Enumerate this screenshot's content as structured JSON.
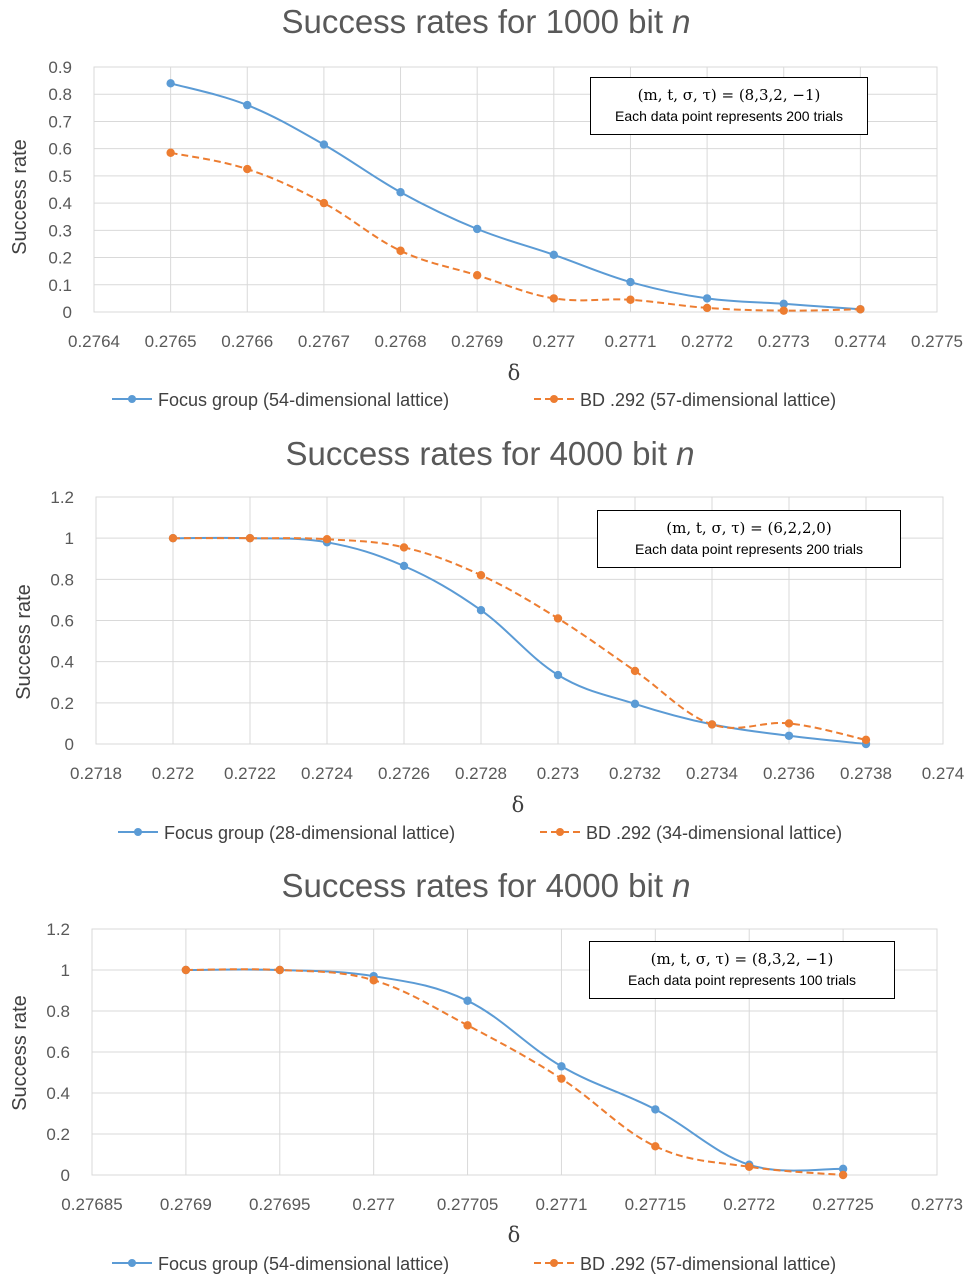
{
  "chart_data": [
    {
      "type": "line",
      "title_prefix": "Success rates for 1000 bit",
      "title_var": "n",
      "xlabel": "δ",
      "ylabel": "Success rate",
      "xlim": [
        0.2764,
        0.2775
      ],
      "ylim": [
        0,
        0.9
      ],
      "x_ticks": [
        "0.2764",
        "0.2765",
        "0.2766",
        "0.2767",
        "0.2768",
        "0.2769",
        "0.277",
        "0.2771",
        "0.2772",
        "0.2773",
        "0.2774",
        "0.2775"
      ],
      "y_ticks": [
        "0",
        "0.1",
        "0.2",
        "0.3",
        "0.4",
        "0.5",
        "0.6",
        "0.7",
        "0.8",
        "0.9"
      ],
      "grid": true,
      "legend_position": "bottom",
      "annotation": {
        "params": "(m, t, σ, τ) = (8,3,2, −1)",
        "note": "Each data point represents 200 trials"
      },
      "series": [
        {
          "name": "Focus group (54-dimensional lattice)",
          "color": "#5B9BD5",
          "style": "solid",
          "x": [
            0.2765,
            0.2766,
            0.2767,
            0.2768,
            0.2769,
            0.277,
            0.2771,
            0.2772,
            0.2773,
            0.2774
          ],
          "values": [
            0.84,
            0.76,
            0.615,
            0.44,
            0.305,
            0.21,
            0.11,
            0.05,
            0.03,
            0.01
          ]
        },
        {
          "name": "BD .292 (57-dimensional lattice)",
          "color": "#ED7D31",
          "style": "dashed",
          "x": [
            0.2765,
            0.2766,
            0.2767,
            0.2768,
            0.2769,
            0.277,
            0.2771,
            0.2772,
            0.2773,
            0.2774
          ],
          "values": [
            0.585,
            0.525,
            0.4,
            0.225,
            0.135,
            0.05,
            0.045,
            0.015,
            0.005,
            0.01
          ]
        }
      ]
    },
    {
      "type": "line",
      "title_prefix": "Success rates for 4000 bit",
      "title_var": "n",
      "xlabel": "δ",
      "ylabel": "Success rate",
      "xlim": [
        0.2718,
        0.274
      ],
      "ylim": [
        0,
        1.2
      ],
      "x_ticks": [
        "0.2718",
        "0.272",
        "0.2722",
        "0.2724",
        "0.2726",
        "0.2728",
        "0.273",
        "0.2732",
        "0.2734",
        "0.2736",
        "0.2738",
        "0.274"
      ],
      "y_ticks": [
        "0",
        "0.2",
        "0.4",
        "0.6",
        "0.8",
        "1",
        "1.2"
      ],
      "grid": true,
      "legend_position": "bottom",
      "annotation": {
        "params": "(m, t, σ, τ) = (6,2,2,0)",
        "note": "Each data point represents 200 trials"
      },
      "series": [
        {
          "name": "Focus group (28-dimensional lattice)",
          "color": "#5B9BD5",
          "style": "solid",
          "x": [
            0.272,
            0.2722,
            0.2724,
            0.2726,
            0.2728,
            0.273,
            0.2732,
            0.2734,
            0.2736,
            0.2738
          ],
          "values": [
            1.0,
            1.0,
            0.98,
            0.865,
            0.65,
            0.335,
            0.195,
            0.095,
            0.04,
            0.0
          ]
        },
        {
          "name": "BD .292 (34-dimensional lattice)",
          "color": "#ED7D31",
          "style": "dashed",
          "x": [
            0.272,
            0.2722,
            0.2724,
            0.2726,
            0.2728,
            0.273,
            0.2732,
            0.2734,
            0.2736,
            0.2738
          ],
          "values": [
            1.0,
            1.0,
            0.995,
            0.955,
            0.82,
            0.61,
            0.355,
            0.095,
            0.1,
            0.02
          ]
        }
      ]
    },
    {
      "type": "line",
      "title_prefix": "Success rates for 4000 bit",
      "title_var": "n",
      "xlabel": "δ",
      "ylabel": "Success rate",
      "xlim": [
        0.27685,
        0.2773
      ],
      "ylim": [
        0,
        1.2
      ],
      "x_ticks": [
        "0.27685",
        "0.2769",
        "0.27695",
        "0.277",
        "0.27705",
        "0.2771",
        "0.27715",
        "0.2772",
        "0.27725",
        "0.2773"
      ],
      "y_ticks": [
        "0",
        "0.2",
        "0.4",
        "0.6",
        "0.8",
        "1",
        "1.2"
      ],
      "grid": true,
      "legend_position": "bottom",
      "annotation": {
        "params": "(m, t, σ, τ) = (8,3,2, −1)",
        "note": "Each data point represents 100 trials"
      },
      "series": [
        {
          "name": "Focus group (54-dimensional lattice)",
          "color": "#5B9BD5",
          "style": "solid",
          "x": [
            0.2769,
            0.27695,
            0.277,
            0.27705,
            0.2771,
            0.27715,
            0.2772,
            0.27725
          ],
          "values": [
            1.0,
            1.0,
            0.97,
            0.85,
            0.53,
            0.32,
            0.05,
            0.03
          ]
        },
        {
          "name": "BD .292 (57-dimensional lattice)",
          "color": "#ED7D31",
          "style": "dashed",
          "x": [
            0.2769,
            0.27695,
            0.277,
            0.27705,
            0.2771,
            0.27715,
            0.2772,
            0.27725
          ],
          "values": [
            1.0,
            1.0,
            0.95,
            0.73,
            0.47,
            0.14,
            0.04,
            0.0
          ]
        }
      ]
    }
  ]
}
